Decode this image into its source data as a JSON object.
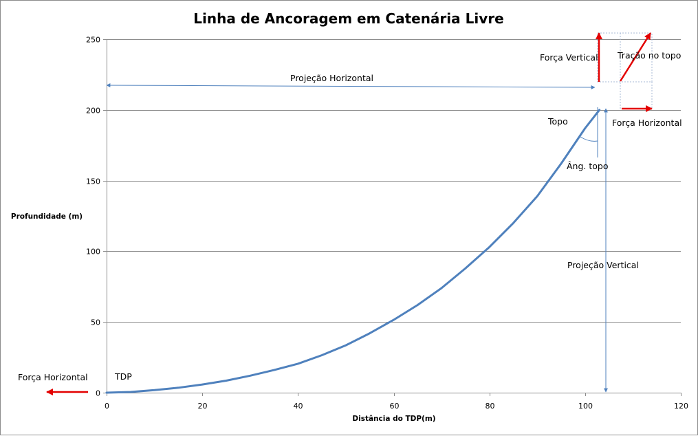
{
  "chart_data": {
    "type": "line",
    "title": "Linha de Ancoragem em Catenária Livre",
    "xlabel": "Distância  do TDP(m)",
    "ylabel": "Profundidade  (m)",
    "xlim": [
      0,
      120
    ],
    "ylim": [
      0,
      250
    ],
    "x_ticks": [
      "0",
      "20",
      "40",
      "60",
      "80",
      "100",
      "120"
    ],
    "y_ticks": [
      "0",
      "50",
      "100",
      "150",
      "200",
      "250"
    ],
    "grid": "horizontal",
    "series": [
      {
        "color": "#4f81bd",
        "x": [
          0,
          5,
          10,
          15,
          20,
          25,
          30,
          35,
          40,
          45,
          50,
          55,
          60,
          65,
          70,
          75,
          80,
          85,
          90,
          95,
          100,
          103
        ],
        "y": [
          0,
          0.5,
          1.8,
          3.5,
          5.8,
          8.5,
          12,
          16,
          20.5,
          26.5,
          33.5,
          42,
          51.5,
          62,
          74,
          88,
          103,
          120,
          139,
          162,
          187,
          200
        ]
      }
    ],
    "annotations": {
      "tdp": "TDP",
      "force_horizontal_left": "Força Horizontal",
      "horizontal_projection": "Projeção Horizontal",
      "vertical_force": "Força Vertical",
      "top_tension": "Tração  no topo",
      "top": "Topo",
      "force_horizontal_right": "Força Horizontal",
      "top_angle": "Âng. topo",
      "vertical_projection": "Projeção Vertical"
    },
    "colors": {
      "arrow": "#e30000",
      "guide": "#4f81bd",
      "grid": "#8c8c8c",
      "dotted_box": "#a7b8d4"
    }
  }
}
